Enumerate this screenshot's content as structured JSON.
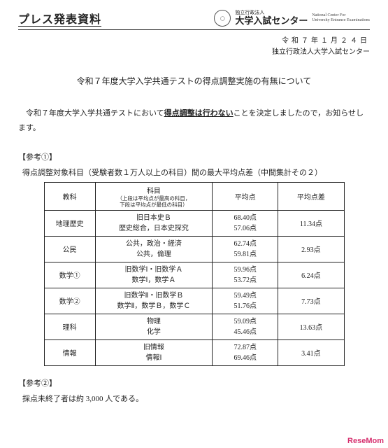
{
  "header": {
    "press_label": "プレス発表資料",
    "org_small": "独立行政法人",
    "org_main": "大学入試センター",
    "org_en1": "National Center For",
    "org_en2": "University Entrance Examinations"
  },
  "date": {
    "line": "令和７年１月２４日",
    "org": "独立行政法人大学入試センター"
  },
  "title": "令和７年度大学入学共通テストの得点調整実施の有無について",
  "body": {
    "pre": "令和７年度大学入学共通テストにおいて",
    "bold": "得点調整は行わない",
    "post": "ことを決定しましたので，お知らせします。"
  },
  "ref1": {
    "label": "【参考①】",
    "desc": "得点調整対象科目（受験者数１万人以上の科目）間の最大平均点差（中間集計その２）"
  },
  "table": {
    "head": {
      "subject": "教科",
      "course": "科目",
      "course_note1": "（上段は平均点が最高の科目，",
      "course_note2": "下段は平均点が最低の科目）",
      "avg": "平均点",
      "diff": "平均点差"
    },
    "rows": [
      {
        "subject": "地理歴史",
        "c1": "旧日本史Ｂ",
        "c2": "歴史総合，日本史探究",
        "a1": "68.40点",
        "a2": "57.06点",
        "diff": "11.34点"
      },
      {
        "subject": "公民",
        "c1": "公共，政治・経済",
        "c2": "公共，倫理",
        "a1": "62.74点",
        "a2": "59.81点",
        "diff": "2.93点"
      },
      {
        "subject": "数学①",
        "c1": "旧数学Ⅰ・旧数学Ａ",
        "c2": "数学Ⅰ，数学Ａ",
        "a1": "59.96点",
        "a2": "53.72点",
        "diff": "6.24点"
      },
      {
        "subject": "数学②",
        "c1": "旧数学Ⅱ・旧数学Ｂ",
        "c2": "数学Ⅱ，数学Ｂ，数学Ｃ",
        "a1": "59.49点",
        "a2": "51.76点",
        "diff": "7.73点"
      },
      {
        "subject": "理科",
        "c1": "物理",
        "c2": "化学",
        "a1": "59.09点",
        "a2": "45.46点",
        "diff": "13.63点"
      },
      {
        "subject": "情報",
        "c1": "旧情報",
        "c2": "情報Ⅰ",
        "a1": "72.87点",
        "a2": "69.46点",
        "diff": "3.41点"
      }
    ]
  },
  "ref2": {
    "label": "【参考②】",
    "note": "採点未終了者は約 3,000 人である。"
  },
  "watermark": {
    "a": "ReseMom",
    "b": ""
  }
}
